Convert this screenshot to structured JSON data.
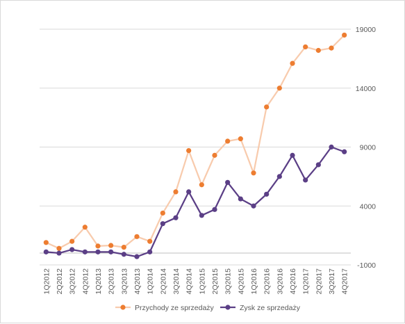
{
  "chart_data": {
    "type": "line",
    "title": "",
    "xlabel": "",
    "ylabel": "",
    "categories": [
      "1Q2012",
      "2Q2012",
      "3Q2012",
      "4Q2012",
      "1Q2013",
      "2Q2013",
      "3Q2013",
      "4Q2013",
      "1Q2014",
      "2Q2014",
      "3Q2014",
      "4Q2014",
      "1Q2015",
      "2Q2015",
      "3Q2015",
      "4Q2015",
      "1Q2016",
      "2Q2016",
      "3Q2016",
      "4Q2016",
      "1Q2017",
      "2Q2017",
      "3Q2017",
      "4Q2017"
    ],
    "series": [
      {
        "name": "Przychody ze sprzedaży",
        "color": "#ed7d31",
        "line_color": "#f8cbad",
        "values": [
          900,
          400,
          1000,
          2200,
          600,
          650,
          500,
          1400,
          1000,
          3400,
          5200,
          8700,
          5800,
          8300,
          9500,
          9700,
          6800,
          12400,
          14000,
          16100,
          17500,
          17200,
          17400,
          18500
        ]
      },
      {
        "name": "Zysk ze sprzedaży",
        "color": "#5b3f86",
        "line_color": "#5b3f86",
        "values": [
          100,
          0,
          300,
          100,
          100,
          100,
          -100,
          -300,
          100,
          2500,
          3000,
          5200,
          3200,
          3700,
          6000,
          4600,
          4000,
          5000,
          6500,
          8300,
          6200,
          7500,
          9000,
          8600
        ]
      }
    ],
    "ylim": [
      -1000,
      19000
    ],
    "yticks": [
      19000,
      14000,
      9000,
      4000,
      -1000
    ],
    "grid": true,
    "legend_position": "bottom"
  }
}
